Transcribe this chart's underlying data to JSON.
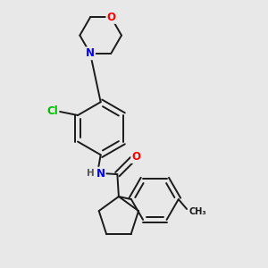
{
  "background_color": "#e8e8e8",
  "bond_color": "#1a1a1a",
  "atom_colors": {
    "O": "#ff0000",
    "N": "#0000ff",
    "Cl": "#00bb00",
    "C": "#1a1a1a",
    "H": "#555555"
  },
  "figsize": [
    3.0,
    3.0
  ],
  "dpi": 100
}
